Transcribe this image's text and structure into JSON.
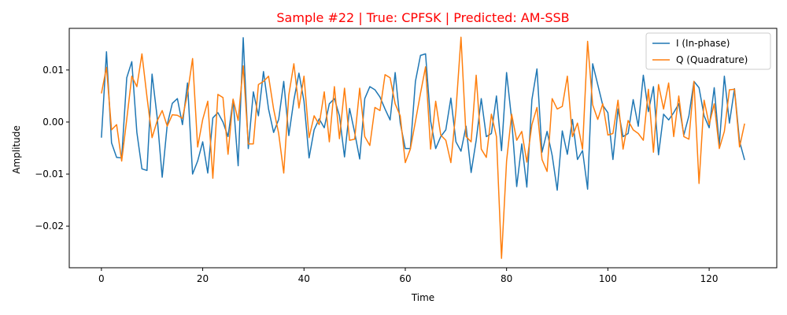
{
  "chart_data": {
    "type": "line",
    "title": "Sample #22 | True: CPFSK | Predicted: AM-SSB",
    "title_color": "#ff0000",
    "xlabel": "Time",
    "ylabel": "Amplitude",
    "xlim": [
      -6.35,
      133.35
    ],
    "ylim": [
      -0.028,
      0.018
    ],
    "x_ticks": [
      0,
      20,
      40,
      60,
      80,
      100,
      120
    ],
    "x_tick_labels": [
      "0",
      "20",
      "40",
      "60",
      "80",
      "100",
      "120"
    ],
    "y_ticks": [
      -0.02,
      -0.01,
      0.0,
      0.01
    ],
    "y_tick_labels": [
      "−0.02",
      "−0.01",
      "0.00",
      "0.01"
    ],
    "grid": false,
    "legend_position": "top-right",
    "series": [
      {
        "name": "I (In-phase)",
        "color": "#1f77b4",
        "values": [
          -0.003,
          0.0135,
          -0.004,
          -0.0068,
          -0.0069,
          0.0085,
          0.0116,
          -0.002,
          -0.009,
          -0.0093,
          0.0092,
          0.001,
          -0.0106,
          -0.0005,
          0.0036,
          0.0045,
          -0.0005,
          0.0075,
          -0.01,
          -0.0075,
          -0.0038,
          -0.0098,
          0.0008,
          0.0018,
          0.0,
          -0.0028,
          0.0043,
          -0.0084,
          0.0162,
          -0.0051,
          0.0058,
          0.0012,
          0.0097,
          0.0025,
          -0.002,
          0.0005,
          0.0078,
          -0.0026,
          0.0042,
          0.0094,
          0.004,
          -0.0069,
          -0.0015,
          0.0006,
          -0.0011,
          0.0035,
          0.0045,
          0.0012,
          -0.0067,
          0.0026,
          -0.002,
          -0.0071,
          0.0045,
          0.0068,
          0.0062,
          0.0048,
          0.0025,
          0.0004,
          0.0095,
          -0.0002,
          -0.0051,
          -0.0051,
          0.0078,
          0.0128,
          0.0131,
          0.0002,
          -0.0051,
          -0.0028,
          -0.0015,
          0.0046,
          -0.0038,
          -0.0056,
          -0.0008,
          -0.0097,
          -0.0035,
          0.0045,
          -0.0028,
          -0.0022,
          0.005,
          -0.0055,
          0.0095,
          0.0005,
          -0.0124,
          -0.0042,
          -0.0125,
          0.0043,
          0.0102,
          -0.0058,
          -0.0018,
          -0.0064,
          -0.0131,
          -0.0017,
          -0.0062,
          0.0005,
          -0.0072,
          -0.0055,
          -0.0129,
          0.0112,
          0.0072,
          0.0032,
          0.0018,
          -0.0072,
          0.0025,
          -0.0028,
          -0.0022,
          0.0043,
          -0.0008,
          0.009,
          0.002,
          0.0068,
          -0.0063,
          0.0015,
          0.0004,
          0.0018,
          0.0035,
          -0.0025,
          0.0012,
          0.0078,
          0.0066,
          0.0012,
          -0.0011,
          0.0066,
          -0.0045,
          0.0088,
          -0.0002,
          0.0064,
          -0.0037,
          -0.0073
        ]
      },
      {
        "name": "Q (Quadrature)",
        "color": "#ff7f0e",
        "values": [
          0.0055,
          0.0105,
          -0.0015,
          -0.0005,
          -0.0075,
          0.0005,
          0.0088,
          0.0068,
          0.0131,
          0.0048,
          -0.003,
          0.0002,
          0.0022,
          -0.0008,
          0.0014,
          0.0013,
          0.0007,
          0.0055,
          0.0122,
          -0.0048,
          0.0005,
          0.004,
          -0.0108,
          0.0053,
          0.0047,
          -0.0062,
          0.0044,
          0.0003,
          0.0108,
          -0.0042,
          -0.0042,
          0.0072,
          0.0078,
          0.0088,
          0.0025,
          -0.0022,
          -0.0098,
          0.0052,
          0.0112,
          0.0027,
          0.0088,
          -0.003,
          0.0012,
          -0.0005,
          0.0058,
          -0.0038,
          0.0068,
          -0.0032,
          0.0065,
          -0.0035,
          -0.0033,
          0.0065,
          -0.0028,
          -0.0045,
          0.0028,
          0.0022,
          0.0091,
          0.0085,
          0.0035,
          0.0012,
          -0.0078,
          -0.0052,
          0.0001,
          0.0055,
          0.0106,
          -0.0052,
          0.004,
          -0.0025,
          -0.0035,
          -0.0078,
          0.0022,
          0.0163,
          -0.0028,
          -0.0038,
          0.009,
          -0.0052,
          -0.0068,
          0.0015,
          -0.0028,
          -0.0262,
          -0.0075,
          0.0015,
          -0.0035,
          -0.0018,
          -0.0077,
          -0.0005,
          0.0028,
          -0.0072,
          -0.0095,
          0.0045,
          0.0025,
          0.003,
          0.0088,
          -0.0028,
          -0.0002,
          -0.0052,
          0.0155,
          0.0033,
          0.0005,
          0.0035,
          -0.0025,
          -0.0022,
          0.0042,
          -0.0052,
          0.0003,
          -0.0015,
          -0.0022,
          -0.0035,
          0.0063,
          -0.0058,
          0.0072,
          0.0025,
          0.0075,
          -0.0028,
          0.005,
          -0.0028,
          -0.0033,
          0.0078,
          -0.0118,
          0.0042,
          -0.0005,
          0.0035,
          -0.0051,
          -0.0018,
          0.0062,
          0.0063,
          -0.0048,
          -0.0003
        ]
      }
    ]
  }
}
